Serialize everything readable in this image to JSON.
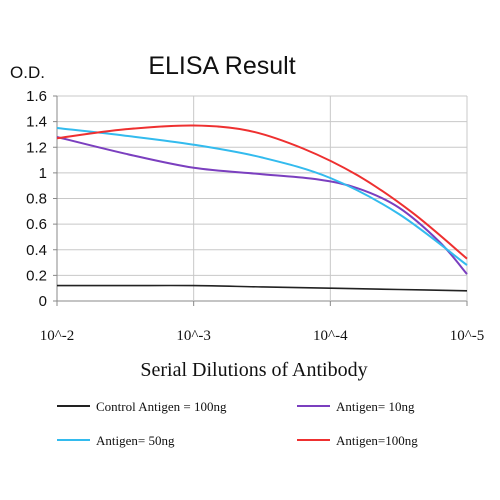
{
  "chart_data": {
    "type": "line",
    "title": "ELISA Result",
    "ylabel": "O.D.",
    "xlabel": "Serial Dilutions of Antibody",
    "categories": [
      "10^-2",
      "10^-3",
      "10^-4",
      "10^-5"
    ],
    "y_ticks": [
      "0",
      "0.2",
      "0.4",
      "0.6",
      "0.8",
      "1",
      "1.2",
      "1.4",
      "1.6"
    ],
    "ylim": [
      0,
      1.6
    ],
    "grid": true,
    "legend_position": "bottom",
    "series": [
      {
        "name": "Control Antigen = 100ng",
        "color": "#222222",
        "x": [
          0,
          0.5,
          1,
          1.5,
          2,
          2.5,
          3
        ],
        "values": [
          0.12,
          0.12,
          0.12,
          0.11,
          0.1,
          0.09,
          0.08
        ]
      },
      {
        "name": "Antigen= 10ng",
        "color": "#7b3fbf",
        "x": [
          0,
          0.5,
          1,
          1.5,
          1.9,
          2.2,
          2.5,
          2.8,
          3
        ],
        "values": [
          1.28,
          1.15,
          1.04,
          0.99,
          0.95,
          0.88,
          0.73,
          0.46,
          0.21
        ]
      },
      {
        "name": "Antigen= 50ng",
        "color": "#33bbee",
        "x": [
          0,
          0.5,
          1,
          1.5,
          2,
          2.5,
          3
        ],
        "values": [
          1.35,
          1.29,
          1.22,
          1.12,
          0.96,
          0.68,
          0.28
        ]
      },
      {
        "name": "Antigen=100ng",
        "color": "#ee3030",
        "x": [
          0,
          0.5,
          1,
          1.4,
          1.8,
          2.2,
          2.6,
          3
        ],
        "values": [
          1.27,
          1.34,
          1.37,
          1.33,
          1.19,
          0.98,
          0.69,
          0.33
        ]
      }
    ]
  }
}
